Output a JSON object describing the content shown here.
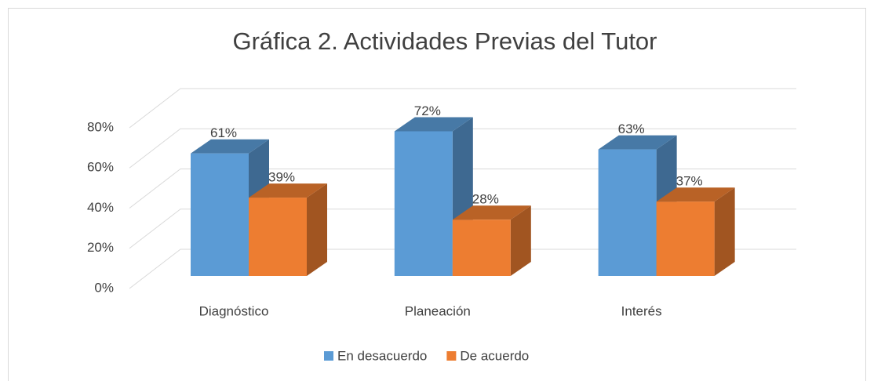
{
  "chart_data": {
    "type": "bar3d",
    "title": "Gráfica 2. Actividades Previas del Tutor",
    "categories": [
      "Diagnóstico",
      "Planeación",
      "Interés"
    ],
    "series": [
      {
        "name": "En desacuerdo",
        "color": "#5b9bd5",
        "values": [
          61,
          72,
          63
        ],
        "value_labels": [
          "61%",
          "72%",
          "63%"
        ]
      },
      {
        "name": "De acuerdo",
        "color": "#ed7d31",
        "values": [
          39,
          28,
          37
        ],
        "value_labels": [
          "39%",
          "28%",
          "37%"
        ]
      }
    ],
    "ylim": [
      0,
      80
    ],
    "yticks": [
      {
        "value": 0,
        "label": "0%"
      },
      {
        "value": 20,
        "label": "20%"
      },
      {
        "value": 40,
        "label": "40%"
      },
      {
        "value": 60,
        "label": "60%"
      },
      {
        "value": 80,
        "label": "80%"
      }
    ],
    "grid": true,
    "legend": "bottom"
  }
}
